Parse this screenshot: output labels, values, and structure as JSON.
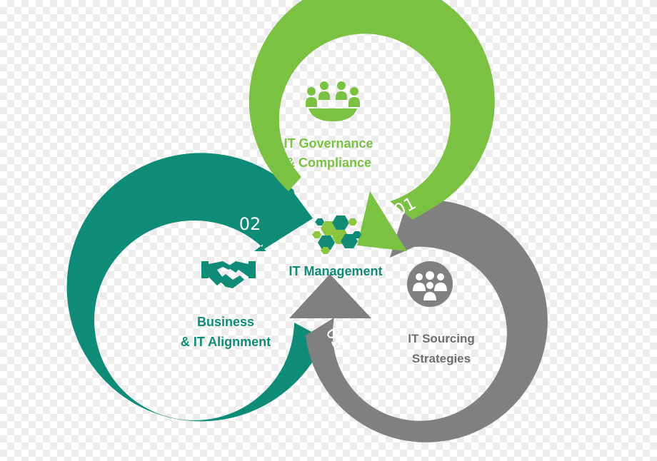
{
  "center": {
    "label": "IT Management"
  },
  "cycles": [
    {
      "id": "governance",
      "number": "01",
      "line1": "IT Governance",
      "line2": "& Compliance",
      "color": "#7bc142",
      "icon": "meeting-icon"
    },
    {
      "id": "alignment",
      "number": "02",
      "line1": "Business",
      "line2": "& IT Alignment",
      "color": "#0e8c78",
      "icon": "handshake-icon"
    },
    {
      "id": "sourcing",
      "number": "03",
      "line1": "IT Sourcing",
      "line2": "Strategies",
      "color": "#808080",
      "icon": "people-group-icon"
    }
  ],
  "colors": {
    "green": "#7bc142",
    "teal": "#0e8c78",
    "gray": "#808080",
    "hex_light": "#8cc63f",
    "hex_dark": "#118a76"
  }
}
